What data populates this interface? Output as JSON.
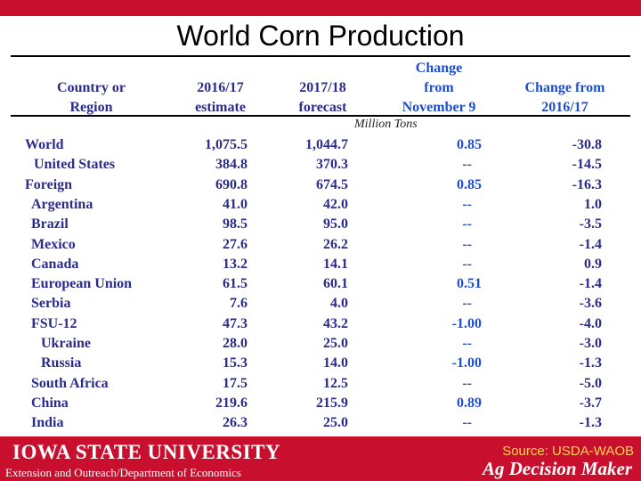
{
  "title": "World Corn Production",
  "table": {
    "headers": {
      "country": "Country or\nRegion",
      "y2016": "2016/17\nestimate",
      "y2017": "2017/18\nforecast",
      "change_nov": "Change\nfrom\nNovember 9",
      "change_2016": "Change from\n2016/17"
    },
    "units": "Million Tons",
    "rows": [
      {
        "name": "World",
        "v2016": "1,075.5",
        "v2017": "1,044.7",
        "chg_nov": "0.85",
        "chg_2016": "-30.8"
      },
      {
        "name": "United States",
        "v2016": "384.8",
        "v2017": "370.3",
        "chg_nov": "--",
        "chg_2016": "-14.5"
      },
      {
        "name": "Foreign",
        "v2016": "690.8",
        "v2017": "674.5",
        "chg_nov": "0.85",
        "chg_2016": "-16.3"
      },
      {
        "name": "Argentina",
        "v2016": "41.0",
        "v2017": "42.0",
        "chg_nov": "--",
        "chg_2016": "1.0"
      },
      {
        "name": "Brazil",
        "v2016": "98.5",
        "v2017": "95.0",
        "chg_nov": "--",
        "chg_2016": "-3.5"
      },
      {
        "name": "Mexico",
        "v2016": "27.6",
        "v2017": "26.2",
        "chg_nov": "--",
        "chg_2016": "-1.4"
      },
      {
        "name": "Canada",
        "v2016": "13.2",
        "v2017": "14.1",
        "chg_nov": "--",
        "chg_2016": "0.9"
      },
      {
        "name": "European Union",
        "v2016": "61.5",
        "v2017": "60.1",
        "chg_nov": "0.51",
        "chg_2016": "-1.4"
      },
      {
        "name": "Serbia",
        "v2016": "7.6",
        "v2017": "4.0",
        "chg_nov": "--",
        "chg_2016": "-3.6"
      },
      {
        "name": "FSU-12",
        "v2016": "47.3",
        "v2017": "43.2",
        "chg_nov": "-1.00",
        "chg_2016": "-4.0"
      },
      {
        "name": "Ukraine",
        "v2016": "28.0",
        "v2017": "25.0",
        "chg_nov": "--",
        "chg_2016": "-3.0"
      },
      {
        "name": "Russia",
        "v2016": "15.3",
        "v2017": "14.0",
        "chg_nov": "-1.00",
        "chg_2016": "-1.3"
      },
      {
        "name": "South Africa",
        "v2016": "17.5",
        "v2017": "12.5",
        "chg_nov": "--",
        "chg_2016": "-5.0"
      },
      {
        "name": "China",
        "v2016": "219.6",
        "v2017": "215.9",
        "chg_nov": "0.89",
        "chg_2016": "-3.7"
      },
      {
        "name": "India",
        "v2016": "26.3",
        "v2017": "25.0",
        "chg_nov": "--",
        "chg_2016": "-1.3"
      }
    ]
  },
  "footer": {
    "university": "Iowa State University",
    "department": "Extension and Outreach/Department of Economics",
    "source": "Source: USDA-WAOB",
    "brand": "Ag Decision Maker"
  },
  "colors": {
    "accent": "#c8102e",
    "text": "#2b2b8c",
    "change_text": "#1f4fc8",
    "source_text": "#ffd54a"
  }
}
